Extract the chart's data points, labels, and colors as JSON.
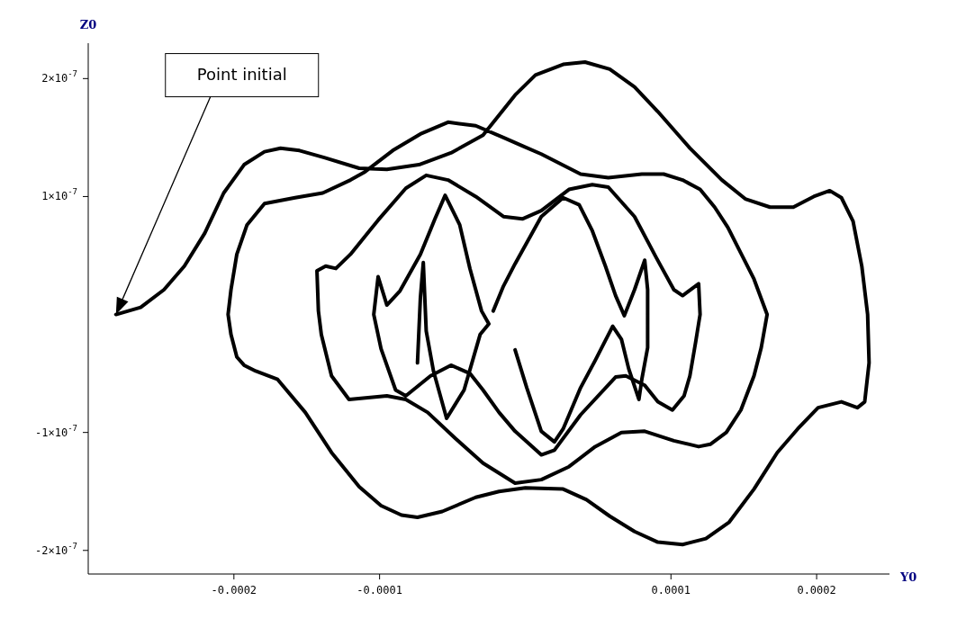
{
  "chart_data": {
    "type": "line",
    "xlabel": "Y0",
    "ylabel": "Z0",
    "xlim": [
      -0.0003,
      0.00025
    ],
    "ylim": [
      -2.2e-07,
      2.3e-07
    ],
    "xticks": [
      -0.0002,
      -0.0001,
      0.0001,
      0.0002
    ],
    "yticks": [
      {
        "value": 2e-07,
        "label": "2×10$^{-7}$"
      },
      {
        "value": 1e-07,
        "label": "1×10$^{-7}$"
      },
      {
        "value": -1e-07,
        "label": "-1×10$^{-7}$"
      },
      {
        "value": -2e-07,
        "label": "-2×10$^{-7}$"
      }
    ],
    "annotations": [
      "Point initial"
    ],
    "series": [
      {
        "color": "#000000",
        "x": [
          -0.000281,
          -0.000264,
          -0.000248,
          -0.000234,
          -0.00022,
          -0.000207,
          -0.000193,
          -0.000179,
          -0.000168,
          -0.000155,
          -0.000138,
          -0.000114,
          -9.5e-05,
          -7.3e-05,
          -5.1e-05,
          -2.9e-05,
          -7e-06,
          7e-06,
          2.6e-05,
          4.1e-05,
          5.8e-05,
          7.5e-05,
          9.1e-05,
          0.000113,
          0.000135,
          0.000151,
          0.000168,
          0.000184,
          0.000198,
          0.000209,
          0.000217,
          0.000225,
          0.000231,
          0.000235,
          0.000236,
          0.000233,
          0.000228,
          0.000217,
          0.000201,
          0.000187,
          0.000173,
          0.000157,
          0.00014,
          0.000124,
          0.000108,
          9.1e-05,
          7.5e-05,
          5.8e-05,
          4.2e-05,
          2.6e-05,
          0,
          -1.8e-05,
          -3.4e-05,
          -5.7e-05,
          -7.4e-05,
          -8.5e-05,
          -9.9e-05,
          -0.000114,
          -0.000133,
          -0.000151,
          -0.00017,
          -0.000185,
          -0.000193,
          -0.000198,
          -0.000202,
          -0.000204,
          -0.000202,
          -0.000198,
          -0.000191,
          -0.000179,
          -0.000158,
          -0.000139,
          -0.00012,
          -0.00011,
          -9.1e-05,
          -7.2e-05,
          -5.3e-05,
          -3.4e-05,
          -1.5e-05,
          -2e-06,
          1.1e-05,
          3.8e-05,
          5.7e-05,
          8e-05,
          9.5e-05,
          0.000108,
          0.00012,
          0.00013,
          0.000139,
          0.000148,
          0.000157,
          0.000166,
          0.000162,
          0.000157,
          0.000148,
          0.000138,
          0.000127,
          0.000119,
          0.000102,
          8.2e-05,
          6.6e-05,
          4.8e-05,
          3e-05,
          1.1e-05,
          -7e-06,
          -2.9e-05,
          -4.8e-05,
          -6.7e-05,
          -8.2e-05,
          -9.5e-05,
          -0.000121,
          -0.000133,
          -0.00014,
          -0.000142,
          -0.000143,
          -0.000137,
          -0.00013,
          -0.00012,
          -0.000101,
          -8.2e-05,
          -6.8e-05,
          -5.3e-05,
          -3.4e-05,
          -1.5e-05,
          -2e-06,
          1.1e-05,
          3e-05,
          4.6e-05,
          5.7e-05,
          7.5e-05,
          9e-05,
          0.000102,
          0.000108,
          0.000119,
          0.00012,
          0.000117,
          0.000113,
          0.000109,
          0.000101,
          9.1e-05,
          8.2e-05,
          7.7e-05,
          6.9e-05,
          6.2e-05,
          3.8e-05,
          2e-05,
          1.1e-05,
          -7e-06,
          -1.8e-05,
          -2.9e-05,
          -3.8e-05,
          -5.1e-05,
          -6.5e-05,
          -8.2e-05,
          -8.9e-05,
          -9.9e-05,
          -0.000104,
          -0.000101,
          -9.5e-05,
          -8.6e-05,
          -7.2e-05,
          -6.2e-05,
          -5.5e-05,
          -4.5e-05,
          -3.8e-05,
          -3e-05,
          -2.5e-05,
          -3.1e-05,
          -4.2e-05,
          -5.4e-05,
          -6.3e-05,
          -6.8e-05,
          -7e-05,
          -7.2e-05,
          -7.4e-05
        ],
        "values": [
          0,
          6e-09,
          2.1e-08,
          4.1e-08,
          6.9e-08,
          1.03e-07,
          1.27e-07,
          1.38e-07,
          1.41e-07,
          1.39e-07,
          1.33e-07,
          1.24e-07,
          1.23e-07,
          1.27e-07,
          1.37e-07,
          1.52e-07,
          1.86e-07,
          2.03e-07,
          2.12e-07,
          2.14e-07,
          2.08e-07,
          1.93e-07,
          1.72e-07,
          1.41e-07,
          1.14e-07,
          9.8e-08,
          9.1e-08,
          9.1e-08,
          1e-07,
          1.05e-07,
          9.9e-08,
          7.9e-08,
          4.1e-08,
          0,
          -4.1e-08,
          -7.4e-08,
          -7.9e-08,
          -7.4e-08,
          -7.9e-08,
          -9.7e-08,
          -1.17e-07,
          -1.48e-07,
          -1.76e-07,
          -1.9e-07,
          -1.95e-07,
          -1.93e-07,
          -1.84e-07,
          -1.71e-07,
          -1.57e-07,
          -1.48e-07,
          -1.47e-07,
          -1.5e-07,
          -1.55e-07,
          -1.67e-07,
          -1.72e-07,
          -1.7e-07,
          -1.62e-07,
          -1.46e-07,
          -1.17e-07,
          -8.3e-08,
          -5.5e-08,
          -4.8e-08,
          -4.3e-08,
          -3.6e-08,
          -1.7e-08,
          0,
          2.1e-08,
          5.1e-08,
          7.6e-08,
          9.4e-08,
          9.9e-08,
          1.03e-07,
          1.14e-07,
          1.21e-07,
          1.39e-07,
          1.53e-07,
          1.63e-07,
          1.6e-07,
          1.5e-07,
          1.43e-07,
          1.36e-07,
          1.19e-07,
          1.16e-07,
          1.19e-07,
          1.19e-07,
          1.14e-07,
          1.06e-07,
          9.1e-08,
          7.4e-08,
          5.2e-08,
          3e-08,
          0,
          -2.8e-08,
          -5.2e-08,
          -8.1e-08,
          -1e-07,
          -1.1e-07,
          -1.12e-07,
          -1.07e-07,
          -9.9e-08,
          -1e-07,
          -1.12e-07,
          -1.29e-07,
          -1.4e-07,
          -1.43e-07,
          -1.26e-07,
          -1.05e-07,
          -8.3e-08,
          -7.2e-08,
          -6.9e-08,
          -7.2e-08,
          -5.2e-08,
          -1.7e-08,
          3e-09,
          3.7e-08,
          4.1e-08,
          3.9e-08,
          5.1e-08,
          8e-08,
          1.07e-07,
          1.18e-07,
          1.14e-07,
          1e-07,
          8.3e-08,
          8.1e-08,
          8.8e-08,
          1.06e-07,
          1.1e-07,
          1.08e-07,
          8.3e-08,
          4.8e-08,
          2.1e-08,
          1.6e-08,
          2.6e-08,
          0,
          -2.3e-08,
          -5.2e-08,
          -6.9e-08,
          -8.1e-08,
          -7.4e-08,
          -6e-08,
          -5.7e-08,
          -5.2e-08,
          -5.3e-08,
          -8.5e-08,
          -1.15e-07,
          -1.19e-07,
          -9.9e-08,
          -8.3e-08,
          -6.4e-08,
          -5e-08,
          -4.3e-08,
          -5.2e-08,
          -6.9e-08,
          -6.4e-08,
          -2.9e-08,
          0,
          3.2e-08,
          8e-09,
          2e-08,
          5.1e-08,
          8.1e-08,
          1.01e-07,
          7.6e-08,
          3.9e-08,
          3e-09,
          -8e-09,
          -1.7e-08,
          -6.4e-08,
          -8.8e-08,
          -4.8e-08,
          -1.4e-08,
          4.4e-08,
          1.4e-08,
          -4.1e-08
        ]
      },
      {
        "color": "#000000",
        "x": [
          -2.2e-05,
          -1.5e-05,
          -7e-06,
          1.1e-05,
          2.6e-05,
          3.7e-05,
          4.6e-05,
          5.5e-05,
          6.2e-05,
          6.8e-05,
          7.5e-05,
          8.2e-05,
          8.4e-05,
          8.4e-05,
          8.4e-05,
          8e-05,
          7.8e-05,
          7.1e-05,
          6.6e-05,
          6e-05,
          4.8e-05,
          3.8e-05,
          2.6e-05,
          2e-05,
          1.1e-05,
          1e-06,
          -7e-06
        ],
        "values": [
          3e-09,
          2.4e-08,
          4.3e-08,
          8.3e-08,
          9.9e-08,
          9.3e-08,
          7.1e-08,
          4.1e-08,
          1.6e-08,
          -1e-09,
          2.1e-08,
          4.6e-08,
          2.1e-08,
          0,
          -2.8e-08,
          -5.5e-08,
          -7.2e-08,
          -4.6e-08,
          -2.1e-08,
          -1e-08,
          -3.9e-08,
          -6.2e-08,
          -9.7e-08,
          -1.08e-07,
          -9.9e-08,
          -6.2e-08,
          -3e-08
        ]
      }
    ]
  }
}
